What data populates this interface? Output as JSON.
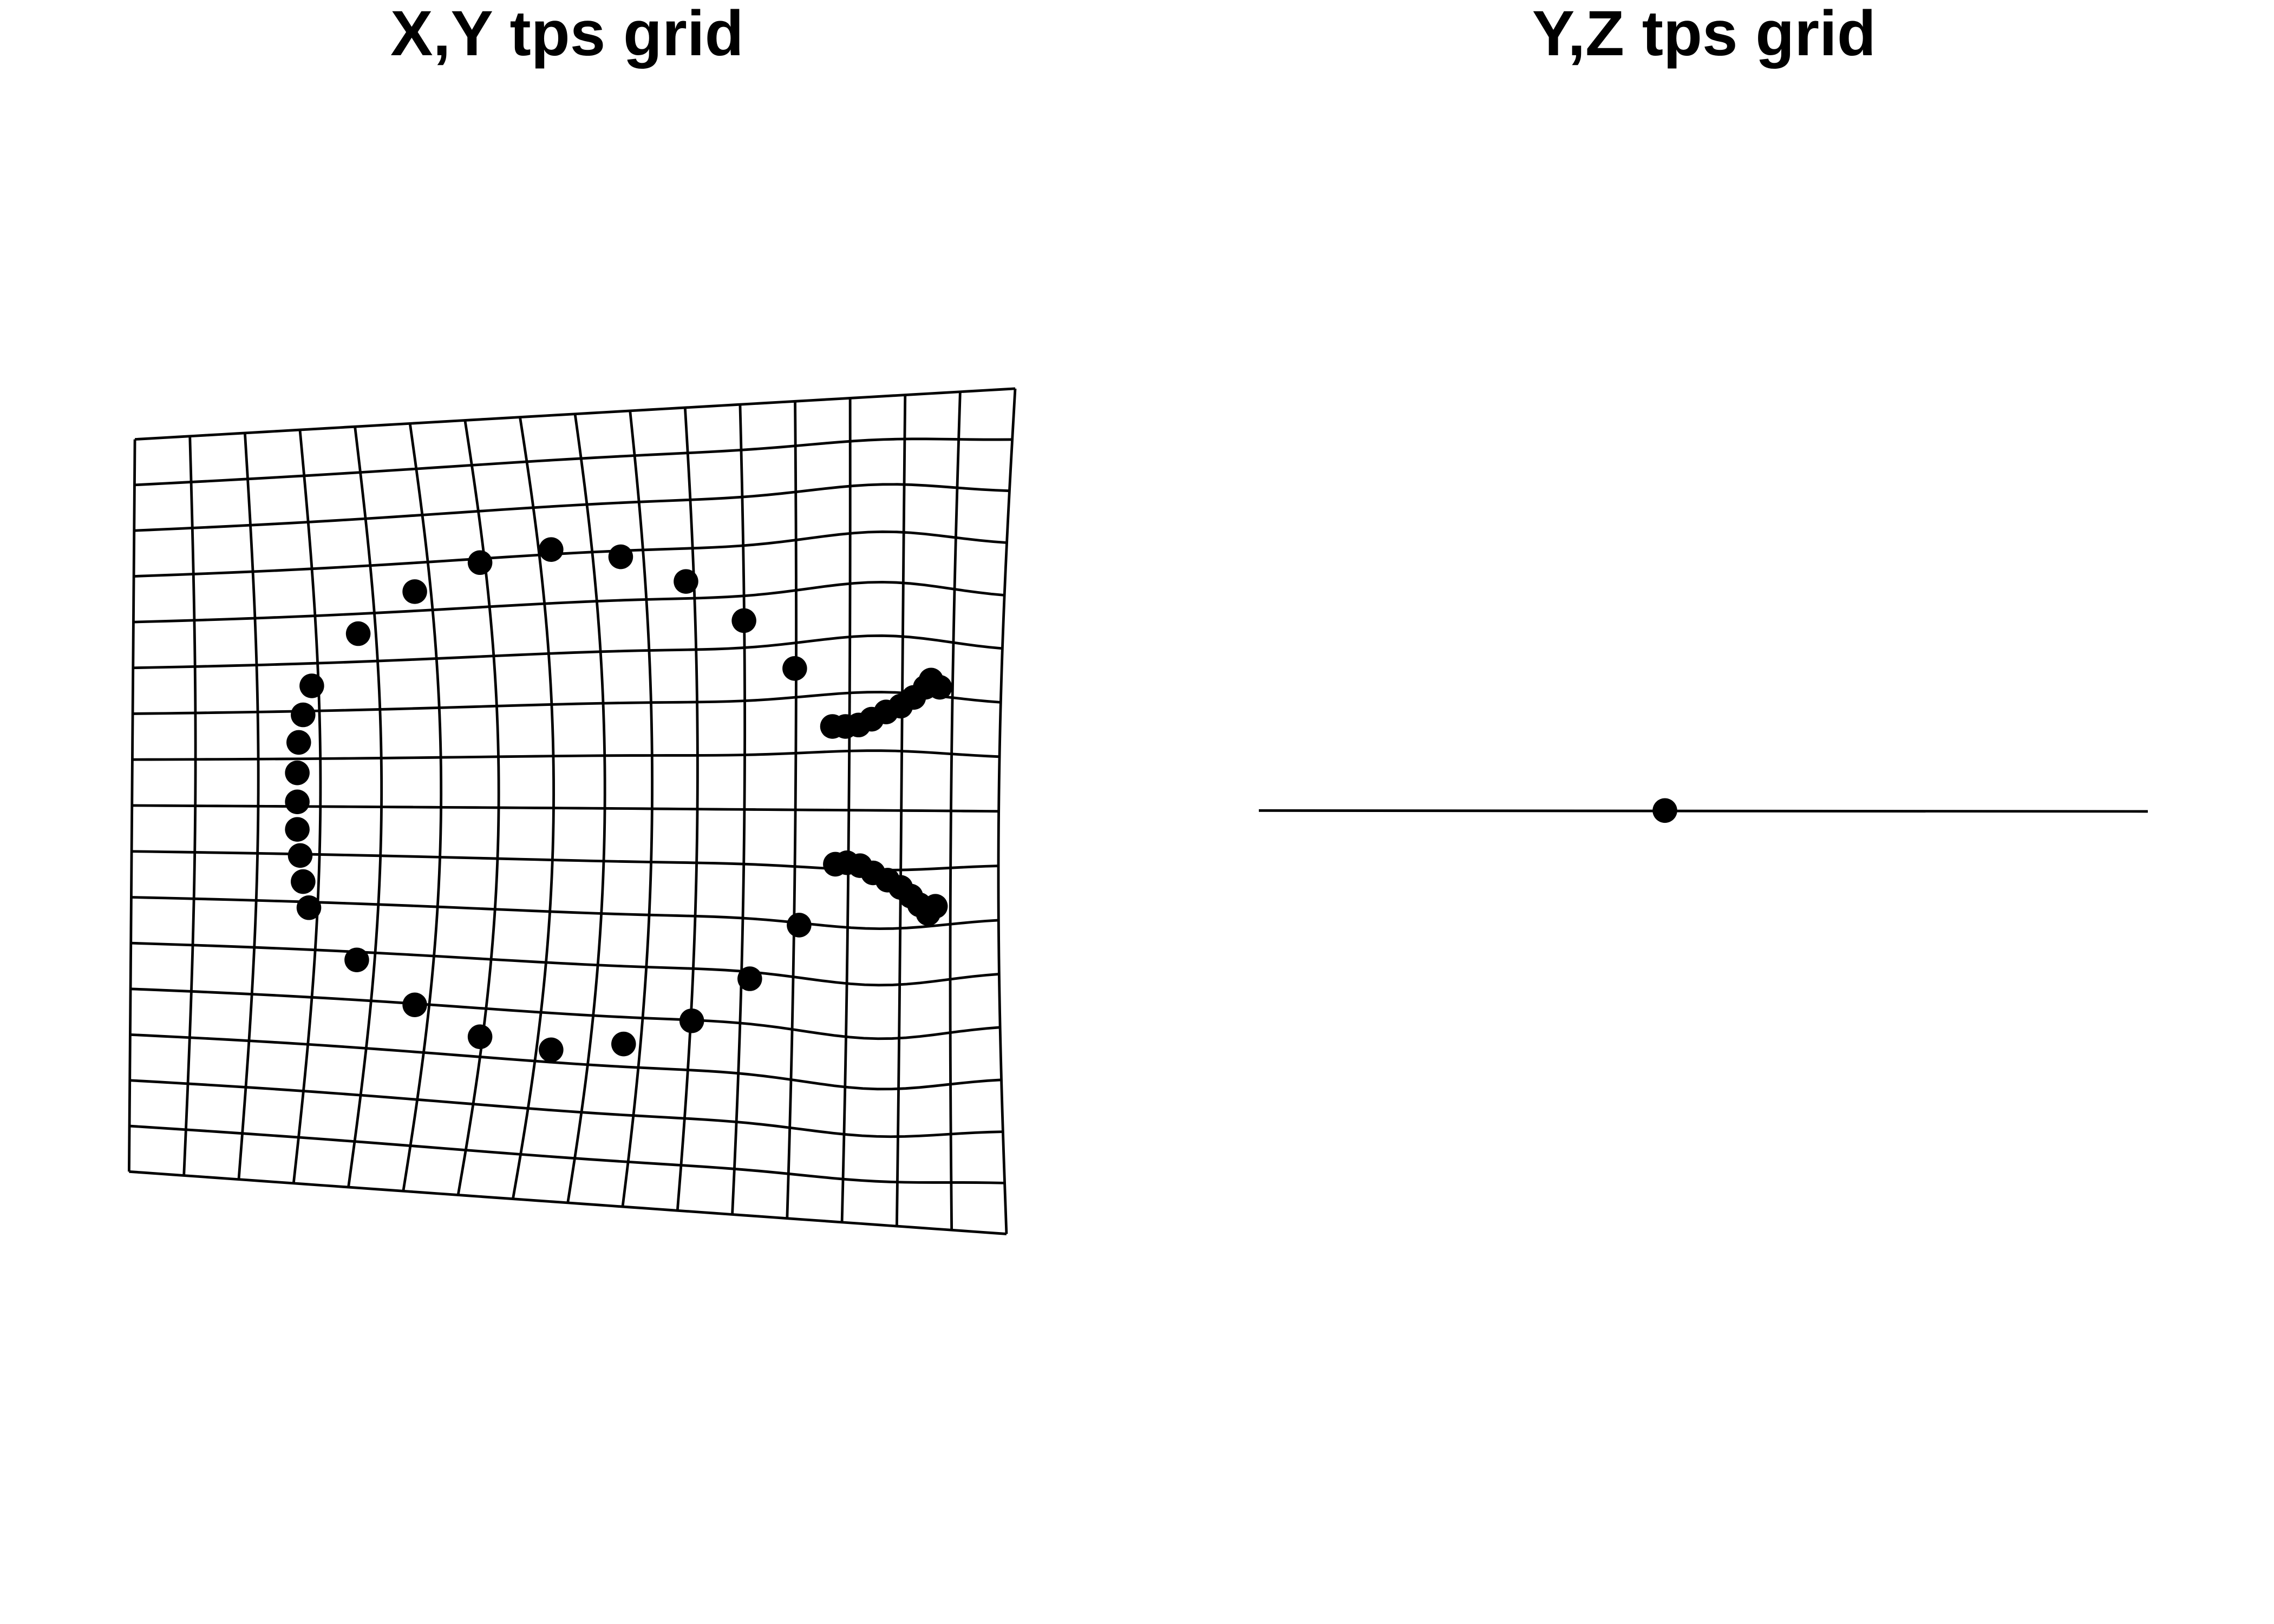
{
  "panels": [
    {
      "id": "xy",
      "title": "X,Y tps grid",
      "grid": {
        "columns": 17,
        "rows": 17
      },
      "landmarks": [
        [
          215.0,
          473.0
        ],
        [
          209.0,
          493.0
        ],
        [
          206.0,
          512.0
        ],
        [
          205.0,
          533.0
        ],
        [
          205.0,
          553.0
        ],
        [
          205.0,
          572.0
        ],
        [
          207.0,
          590.0
        ],
        [
          209.0,
          608.0
        ],
        [
          213.0,
          626.0
        ],
        [
          246.0,
          662.0
        ],
        [
          286.0,
          693.0
        ],
        [
          331.0,
          715.0
        ],
        [
          380.0,
          724.0
        ],
        [
          430.0,
          720.0
        ],
        [
          477.0,
          704.0
        ],
        [
          517.0,
          675.0
        ],
        [
          551.0,
          638.0
        ],
        [
          247.0,
          437.0
        ],
        [
          286.0,
          408.0
        ],
        [
          331.0,
          388.0
        ],
        [
          380.0,
          379.0
        ],
        [
          428.0,
          384.0
        ],
        [
          473.0,
          401.0
        ],
        [
          513.0,
          428.0
        ],
        [
          548.0,
          461.0
        ],
        [
          574.0,
          501.0
        ],
        [
          583.0,
          501.0
        ],
        [
          592.0,
          500.0
        ],
        [
          601.0,
          496.0
        ],
        [
          611.0,
          491.0
        ],
        [
          621.0,
          487.0
        ],
        [
          630.0,
          481.0
        ],
        [
          638.0,
          474.0
        ],
        [
          642.0,
          469.0
        ],
        [
          648.0,
          474.0
        ],
        [
          576.0,
          596.0
        ],
        [
          584.0,
          595.0
        ],
        [
          593.0,
          597.0
        ],
        [
          602.0,
          602.0
        ],
        [
          612.0,
          607.0
        ],
        [
          621.0,
          612.0
        ],
        [
          628.0,
          618.0
        ],
        [
          634.0,
          624.0
        ],
        [
          640.0,
          630.0
        ],
        [
          645.0,
          625.0
        ]
      ]
    },
    {
      "id": "yz",
      "title": "Y,Z tps grid",
      "landmarks": [
        [
          1148.0,
          559.0
        ]
      ]
    }
  ]
}
